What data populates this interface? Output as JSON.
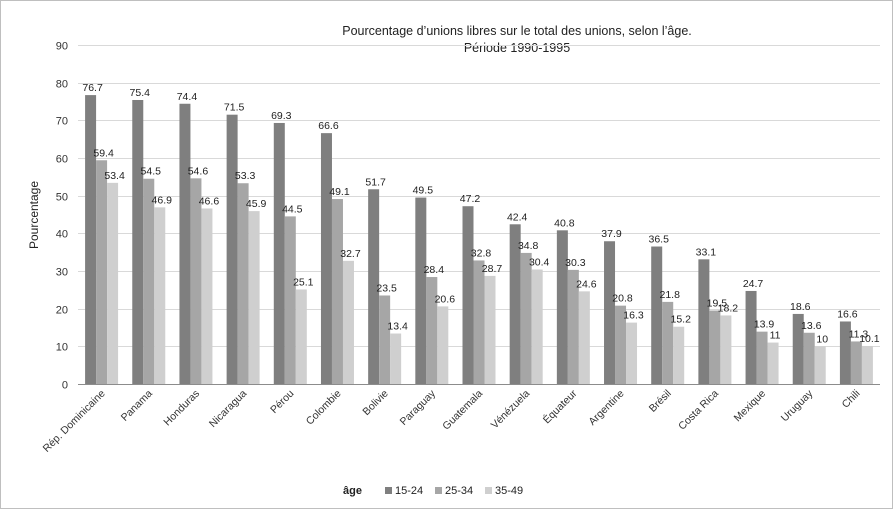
{
  "chart_data": {
    "type": "bar",
    "title": "Pourcentage d’unions libres sur le total des unions, selon l’âge.",
    "subtitle": "Période 1990-1995",
    "ylabel": "Pourcentage",
    "xlabel": "",
    "ylim": [
      0,
      90
    ],
    "yticks": [
      0,
      10,
      20,
      30,
      40,
      50,
      60,
      70,
      80,
      90
    ],
    "grid": true,
    "legend_position": "bottom",
    "legend_title": "âge",
    "categories": [
      "Rép. Dominicaine",
      "Panama",
      "Honduras",
      "Nicaragua",
      "Pérou",
      "Colombie",
      "Bolivie",
      "Paraguay",
      "Guatemala",
      "Vénézuela",
      "Équateur",
      "Argentine",
      "Brésil",
      "Costa Rica",
      "Mexique",
      "Uruguay",
      "Chili"
    ],
    "series": [
      {
        "name": "15-24",
        "color": "#7f7f7f",
        "values": [
          76.7,
          75.4,
          74.4,
          71.5,
          69.3,
          66.6,
          51.7,
          49.5,
          47.2,
          42.4,
          40.8,
          37.9,
          36.5,
          33.1,
          24.7,
          18.6,
          16.6
        ]
      },
      {
        "name": "25-34",
        "color": "#a6a6a6",
        "values": [
          59.4,
          54.5,
          54.6,
          53.3,
          44.5,
          49.1,
          23.5,
          28.4,
          32.8,
          34.8,
          30.3,
          20.8,
          21.8,
          19.5,
          13.9,
          13.6,
          11.3
        ]
      },
      {
        "name": "35-49",
        "color": "#cfcfcf",
        "values": [
          53.4,
          46.9,
          46.6,
          45.9,
          25.1,
          32.7,
          13.4,
          20.6,
          28.7,
          30.4,
          24.6,
          16.3,
          15.2,
          18.2,
          11,
          10,
          10.1
        ]
      }
    ]
  }
}
